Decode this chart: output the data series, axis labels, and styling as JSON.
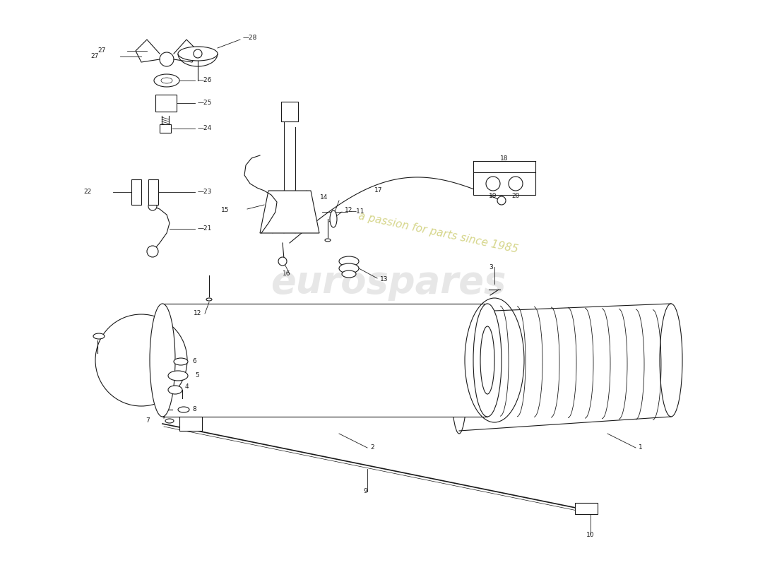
{
  "bg_color": "#ffffff",
  "line_color": "#1a1a1a",
  "wm1_color": "#d0d0d0",
  "wm2_color": "#c8c864",
  "fig_w": 11.0,
  "fig_h": 8.0,
  "dpi": 100
}
